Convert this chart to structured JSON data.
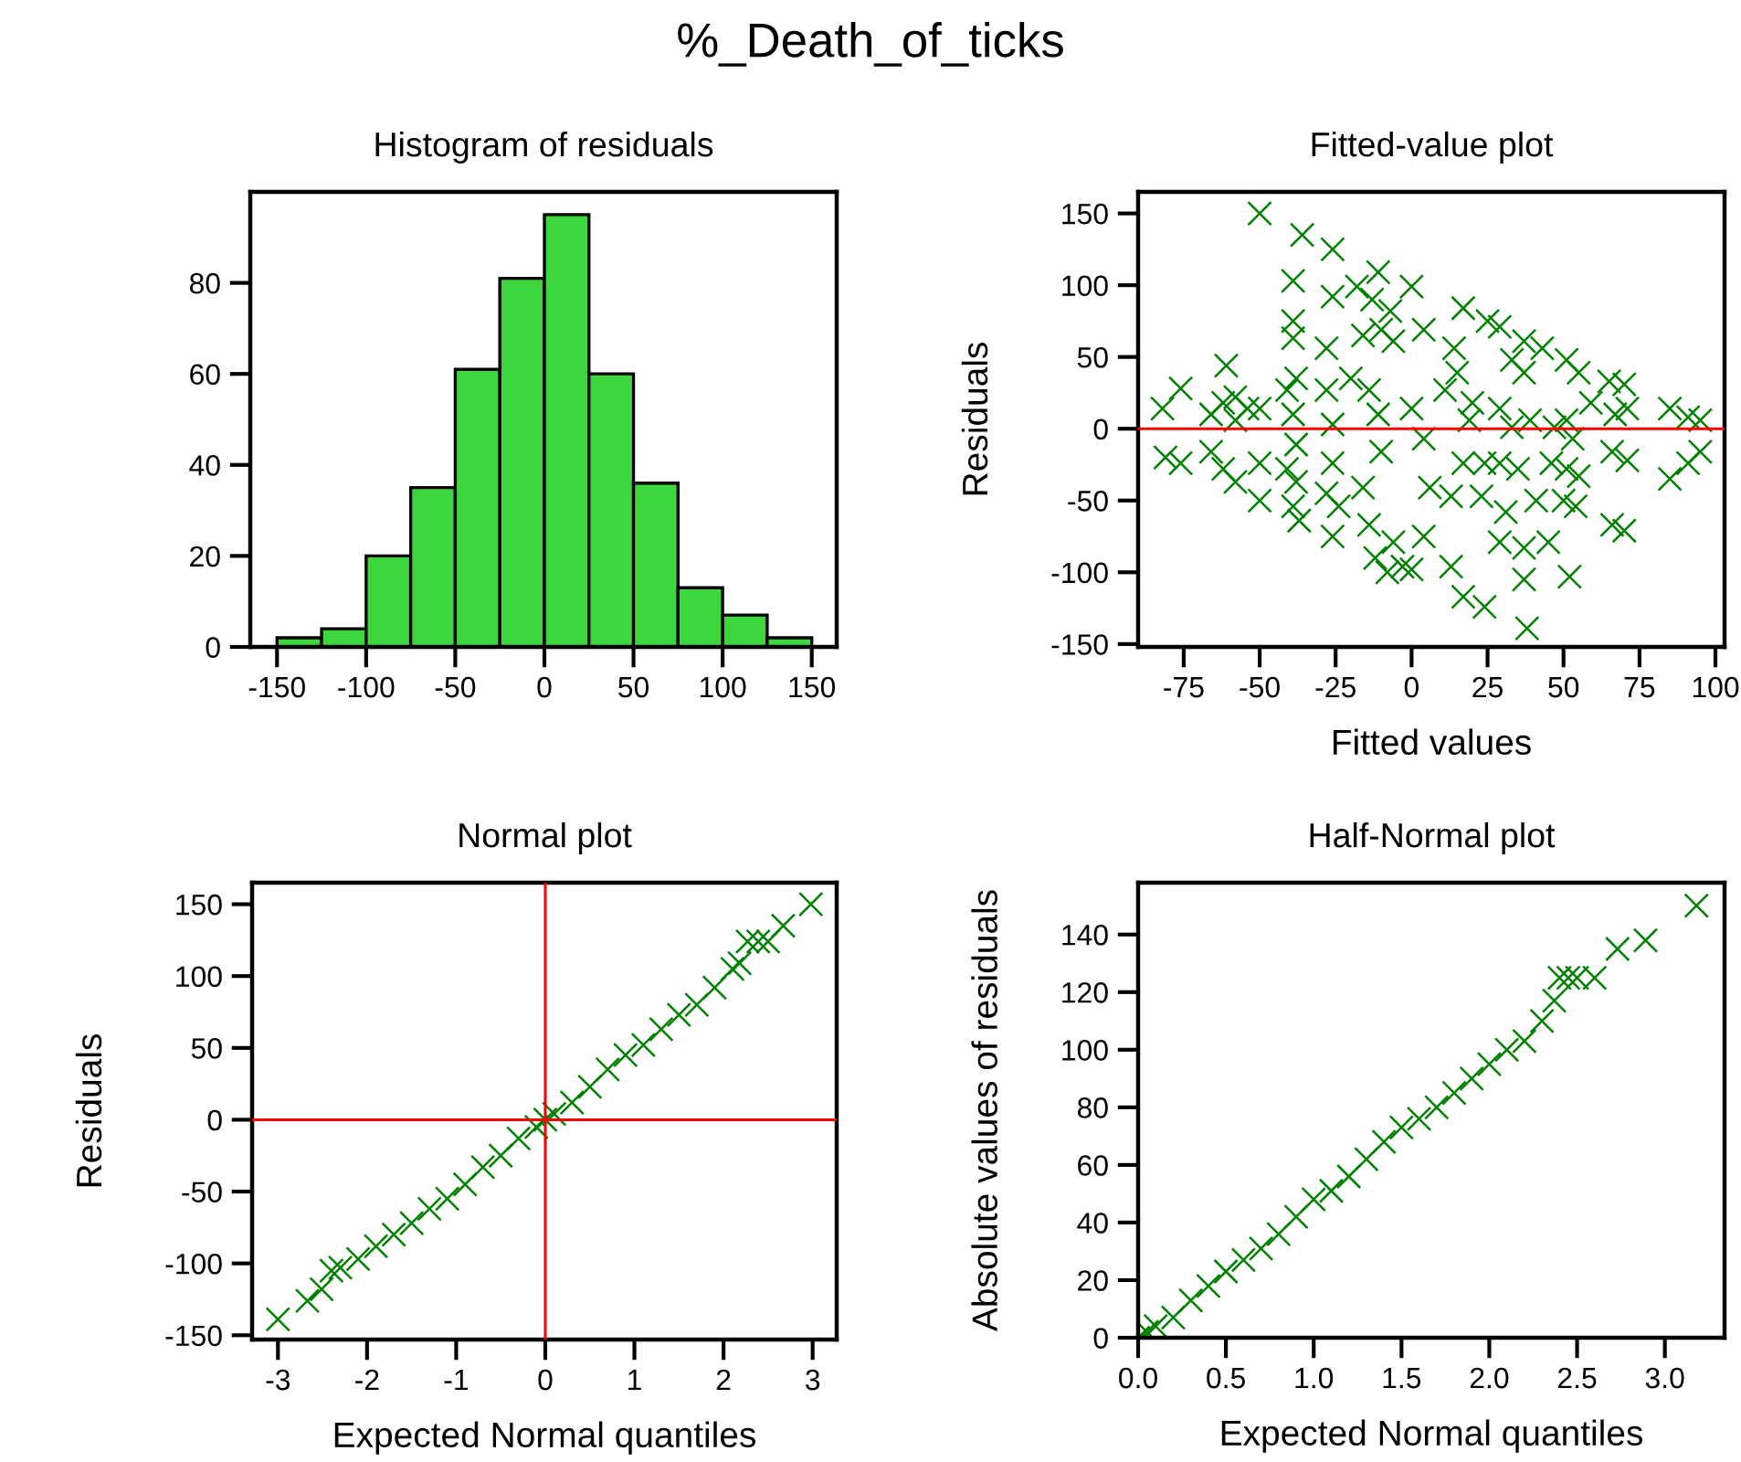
{
  "chart_data": [
    {
      "type": "histogram",
      "title": "Histogram of residuals",
      "annotations": [
        "%_Death_of_ticks"
      ],
      "bins": [
        -150,
        -125,
        -100,
        -75,
        -50,
        -25,
        0,
        25,
        50,
        75,
        100,
        125,
        150
      ],
      "values": [
        2,
        4,
        20,
        35,
        61,
        81,
        95,
        60,
        36,
        13,
        7,
        2
      ],
      "color": "#3dd63d",
      "xlim": [
        -165,
        164
      ],
      "ylim": [
        0,
        100
      ],
      "xticks": [
        -150,
        -100,
        -50,
        0,
        50,
        100,
        150
      ],
      "yticks": [
        0,
        20,
        40,
        60,
        80
      ],
      "grid": false
    },
    {
      "type": "scatter",
      "title": "Fitted-value plot",
      "xlabel": "Fitted values",
      "ylabel": "Residuals",
      "marker": "cross",
      "grid": false,
      "xlim": [
        -90,
        103
      ],
      "ylim": [
        -152,
        165
      ],
      "xticks": [
        -75,
        -50,
        -25,
        0,
        25,
        50,
        75,
        100
      ],
      "yticks": [
        -150,
        -100,
        -50,
        0,
        50,
        100,
        150
      ],
      "ref_lines": [
        {
          "axis": "y",
          "value": 0,
          "color": "#ff0000"
        }
      ],
      "series": [
        {
          "color": "#008000",
          "x": [
            -50,
            -36,
            -26,
            -39,
            -26,
            -11,
            0,
            -18,
            -13,
            -7,
            17,
            4,
            25,
            29,
            37,
            43,
            51,
            55,
            33,
            37,
            -39,
            -39,
            -28,
            -16,
            -10,
            -6,
            14,
            -61,
            -76,
            -82,
            -81,
            -76,
            -66,
            -62,
            -58,
            -54,
            -50,
            -66,
            -62,
            -58,
            -50,
            -50,
            -58,
            -41,
            -38,
            -38,
            -41,
            -38,
            -39,
            -37,
            -39,
            -28,
            -26,
            -26,
            -28,
            -26,
            -24,
            -20,
            -14,
            -11,
            -10,
            -16,
            -14,
            -12,
            -6,
            -3,
            -8,
            0,
            4,
            6,
            4,
            0,
            11,
            15,
            19,
            20,
            17,
            13,
            13,
            17,
            24,
            23,
            24,
            29,
            35,
            31,
            29,
            37,
            37,
            38,
            45,
            41,
            46,
            47,
            33,
            29,
            39,
            51,
            53,
            51,
            55,
            50,
            54,
            52,
            59,
            65,
            70,
            67,
            71,
            66,
            71,
            66,
            70,
            85,
            85,
            91,
            91,
            95,
            95
          ],
          "values": [
            150,
            135,
            125,
            103,
            92,
            109,
            99,
            99,
            90,
            82,
            84,
            69,
            75,
            71,
            61,
            56,
            48,
            39,
            48,
            39,
            75,
            63,
            56,
            65,
            69,
            61,
            56,
            44,
            28,
            14,
            -20,
            -24,
            10,
            18,
            22,
            14,
            14,
            -16,
            -28,
            -37,
            -24,
            -50,
            6,
            27,
            35,
            -11,
            -28,
            -37,
            -54,
            -64,
            10,
            27,
            3,
            -24,
            -45,
            -75,
            -54,
            35,
            27,
            10,
            -16,
            -41,
            -67,
            -90,
            -79,
            -96,
            -100,
            -98,
            -75,
            -41,
            -7,
            14,
            27,
            39,
            6,
            18,
            -24,
            -47,
            -96,
            -117,
            -124,
            -47,
            -24,
            -24,
            -28,
            -58,
            -79,
            -83,
            -105,
            -139,
            -79,
            -50,
            -24,
            1,
            1,
            14,
            6,
            6,
            -7,
            -28,
            -33,
            -50,
            -54,
            -103,
            18,
            33,
            31,
            10,
            14,
            -16,
            -22,
            -67,
            -71,
            14,
            -35,
            -24,
            8,
            6,
            -16
          ]
        }
      ]
    },
    {
      "type": "scatter",
      "title": "Normal plot",
      "xlabel": "Expected Normal quantiles",
      "ylabel": "Residuals",
      "marker": "cross",
      "grid": false,
      "xlim": [
        -3.29,
        3.27
      ],
      "ylim": [
        -153,
        165
      ],
      "xticks": [
        -3,
        -2,
        -1,
        0,
        1,
        2,
        3
      ],
      "yticks": [
        -150,
        -100,
        -50,
        0,
        50,
        100,
        150
      ],
      "ref_lines": [
        {
          "axis": "x",
          "value": 0,
          "color": "#ff0000"
        },
        {
          "axis": "y",
          "value": 0,
          "color": "#ff0000"
        }
      ],
      "series": [
        {
          "color": "#008000",
          "x": [
            -3.0,
            -2.67,
            -2.51,
            -2.4,
            -2.3,
            -2.1,
            -1.9,
            -1.7,
            -1.5,
            -1.3,
            -1.1,
            -0.9,
            -0.7,
            -0.5,
            -0.3,
            -0.1,
            0,
            0.1,
            0.3,
            0.5,
            0.7,
            0.9,
            1.1,
            1.3,
            1.5,
            1.7,
            1.9,
            2.1,
            2.18,
            2.27,
            2.39,
            2.5,
            2.67,
            2.98
          ],
          "values": [
            -139,
            -126,
            -118,
            -105,
            -103,
            -97,
            -88,
            -80,
            -72,
            -62,
            -55,
            -45,
            -33,
            -25,
            -13,
            -5,
            0,
            4,
            12,
            23,
            35,
            45,
            52,
            63,
            73,
            80,
            92,
            105,
            109,
            124,
            124,
            124,
            135,
            150
          ]
        }
      ]
    },
    {
      "type": "scatter",
      "title": "Half-Normal plot",
      "xlabel": "Expected Normal quantiles",
      "ylabel": "Absolute values of residuals",
      "marker": "cross",
      "grid": false,
      "xlim": [
        0,
        3.34
      ],
      "ylim": [
        0,
        158
      ],
      "xticks": [
        {
          "value": 0,
          "label": "0.0"
        },
        {
          "value": 0.5,
          "label": "0.5"
        },
        {
          "value": 1,
          "label": "1.0"
        },
        {
          "value": 1.5,
          "label": "1.5"
        },
        {
          "value": 2,
          "label": "2.0"
        },
        {
          "value": 2.5,
          "label": "2.5"
        },
        {
          "value": 3,
          "label": "3.0"
        }
      ],
      "yticks": [
        0,
        20,
        40,
        60,
        80,
        100,
        120,
        140
      ],
      "series": [
        {
          "color": "#008000",
          "x": [
            0,
            0.05,
            0.1,
            0.2,
            0.3,
            0.4,
            0.5,
            0.6,
            0.7,
            0.8,
            0.9,
            1.0,
            1.1,
            1.2,
            1.3,
            1.4,
            1.5,
            1.6,
            1.7,
            1.8,
            1.9,
            2.0,
            2.1,
            2.2,
            2.3,
            2.37,
            2.4,
            2.45,
            2.5,
            2.6,
            2.73,
            2.89,
            3.18
          ],
          "values": [
            0,
            2,
            4,
            7,
            13,
            18,
            23,
            27,
            31,
            36,
            42,
            48,
            51,
            56,
            62,
            68,
            73,
            76,
            80,
            85,
            90,
            95,
            100,
            103,
            110,
            117,
            125,
            125,
            125,
            125,
            135,
            138,
            150
          ]
        }
      ]
    }
  ]
}
